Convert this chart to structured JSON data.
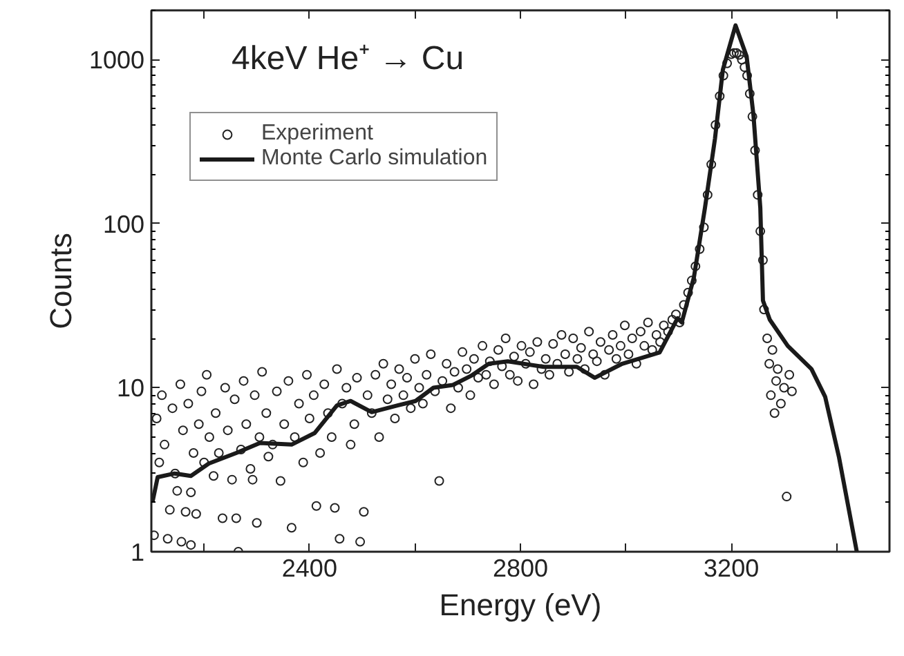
{
  "chart_data": {
    "type": "scatter",
    "xlabel": "Energy (eV)",
    "ylabel": "Counts",
    "annotations": [
      "4keV He⁺ → Cu"
    ],
    "log": "y",
    "grid": false,
    "legend": "top left",
    "xlim": [
      2100,
      3500
    ],
    "xticks": [
      {
        "value": 2200,
        "label": null
      },
      2400,
      {
        "value": 2600,
        "label": null
      },
      2800,
      {
        "value": 3000,
        "label": null
      },
      3200,
      {
        "value": 3400,
        "label": null
      }
    ],
    "ylim": [
      1,
      2000
    ],
    "yticks": [
      1,
      10,
      100,
      1000
    ],
    "series": [
      {
        "name": "Experiment",
        "marker": "circle",
        "color": "#222222",
        "x": [
          2105,
          2110,
          2115,
          2120,
          2125,
          2131,
          2135,
          2140,
          2145,
          2149,
          2155,
          2157,
          2160,
          2165,
          2170,
          2175,
          2175,
          2180,
          2185,
          2190,
          2195,
          2200,
          2205,
          2210,
          2218,
          2222,
          2228,
          2235,
          2240,
          2245,
          2253,
          2258,
          2261,
          2265,
          2270,
          2275,
          2280,
          2288,
          2292,
          2296,
          2300,
          2305,
          2310,
          2318,
          2322,
          2330,
          2338,
          2345,
          2352,
          2360,
          2366,
          2372,
          2380,
          2388,
          2395,
          2400,
          2408,
          2413,
          2420,
          2428,
          2435,
          2442,
          2448,
          2452,
          2457,
          2462,
          2470,
          2478,
          2485,
          2490,
          2496,
          2503,
          2510,
          2518,
          2525,
          2532,
          2540,
          2548,
          2555,
          2562,
          2570,
          2578,
          2585,
          2592,
          2600,
          2608,
          2615,
          2622,
          2630,
          2638,
          2646,
          2652,
          2660,
          2668,
          2675,
          2682,
          2690,
          2698,
          2705,
          2712,
          2720,
          2728,
          2735,
          2742,
          2750,
          2758,
          2765,
          2772,
          2780,
          2788,
          2795,
          2802,
          2810,
          2818,
          2825,
          2832,
          2840,
          2848,
          2855,
          2862,
          2870,
          2878,
          2885,
          2892,
          2900,
          2908,
          2915,
          2922,
          2930,
          2938,
          2945,
          2952,
          2960,
          2968,
          2975,
          2982,
          2990,
          2998,
          3005,
          3012,
          3020,
          3028,
          3035,
          3042,
          3050,
          3058,
          3065,
          3072,
          3080,
          3088,
          3095,
          3102,
          3110,
          3118,
          3125,
          3132,
          3140,
          3148,
          3155,
          3162,
          3170,
          3178,
          3185,
          3192,
          3200,
          3205,
          3210,
          3215,
          3220,
          3225,
          3230,
          3235,
          3240,
          3245,
          3250,
          3255,
          3260,
          3262,
          3268,
          3272,
          3275,
          3278,
          3282,
          3285,
          3288,
          3294,
          3300,
          3305,
          3310,
          3315
        ],
        "values": [
          1.26,
          6.5,
          3.5,
          9.0,
          4.5,
          1.2,
          1.8,
          7.5,
          3.0,
          2.35,
          10.5,
          1.15,
          5.5,
          1.75,
          8.0,
          1.1,
          2.3,
          4.0,
          1.7,
          6.0,
          9.5,
          3.5,
          12.0,
          5.0,
          2.9,
          7.0,
          4.0,
          1.6,
          10.0,
          5.5,
          2.75,
          8.5,
          1.6,
          1.0,
          4.2,
          11.0,
          6.0,
          3.2,
          2.75,
          9.0,
          1.5,
          5.0,
          12.5,
          7.0,
          3.8,
          4.5,
          9.5,
          2.7,
          6.0,
          11.0,
          1.4,
          5.0,
          8.0,
          3.5,
          12.0,
          6.5,
          9.0,
          1.9,
          4.0,
          10.5,
          7.0,
          5.0,
          1.85,
          13.0,
          1.2,
          8.0,
          10.0,
          4.5,
          6.0,
          11.5,
          1.15,
          1.75,
          9.0,
          7.0,
          12.0,
          5.0,
          14.0,
          8.5,
          10.5,
          6.5,
          13.0,
          9.0,
          11.5,
          7.5,
          15.0,
          10.0,
          8.0,
          12.0,
          16.0,
          9.5,
          2.7,
          11.0,
          14.0,
          7.5,
          12.5,
          10.0,
          16.5,
          13.0,
          9.0,
          15.0,
          11.5,
          18.0,
          12.0,
          14.5,
          10.5,
          17.0,
          13.5,
          20.0,
          12.0,
          15.5,
          11.0,
          18.0,
          14.0,
          16.5,
          10.5,
          19.0,
          13.0,
          15.0,
          12.0,
          18.5,
          14.0,
          21.0,
          16.0,
          12.5,
          20.0,
          15.0,
          17.5,
          13.0,
          22.0,
          16.0,
          14.5,
          19.0,
          12.0,
          17.0,
          21.0,
          15.0,
          18.0,
          24.0,
          16.0,
          20.0,
          14.0,
          22.0,
          18.0,
          25.0,
          17.0,
          21.0,
          19.0,
          24.0,
          22.0,
          26.0,
          28.0,
          25.0,
          32.0,
          38.0,
          45.0,
          55.0,
          70.0,
          95.0,
          150.0,
          230.0,
          400.0,
          600.0,
          800.0,
          950.0,
          1080.0,
          1100.0,
          1100.0,
          1070.0,
          1000.0,
          900.0,
          800.0,
          620.0,
          450.0,
          280.0,
          150.0,
          90.0,
          60.0,
          30.0,
          20.0,
          14.0,
          9.0,
          17.0,
          7.0,
          11.0,
          13.0,
          8.0,
          10.0,
          2.17,
          12.0,
          9.5
        ]
      },
      {
        "name": "Monte Carlo simulation",
        "type": "line",
        "line_style": "solid",
        "color": "#1a1a1a",
        "x": [
          2102,
          2112,
          2144,
          2175,
          2209,
          2261,
          2306,
          2366,
          2410,
          2452,
          2478,
          2518,
          2567,
          2601,
          2635,
          2672,
          2706,
          2740,
          2776,
          2844,
          2907,
          2941,
          2993,
          3064,
          3098,
          3106,
          3129,
          3150,
          3169,
          3184,
          3208,
          3229,
          3242,
          3255,
          3260,
          3273,
          3307,
          3352,
          3378,
          3404,
          3438
        ],
        "values": [
          2.0,
          2.85,
          3.0,
          2.9,
          3.45,
          4.0,
          4.6,
          4.5,
          5.3,
          7.8,
          8.3,
          7.1,
          7.8,
          8.3,
          10.0,
          10.4,
          11.8,
          14.0,
          14.5,
          13.4,
          13.4,
          11.5,
          14.0,
          16.4,
          26.5,
          25,
          47,
          125,
          330,
          870,
          1620,
          1050,
          460,
          125,
          34,
          26,
          18,
          13,
          8.8,
          3.8,
          1.0
        ]
      }
    ]
  }
}
